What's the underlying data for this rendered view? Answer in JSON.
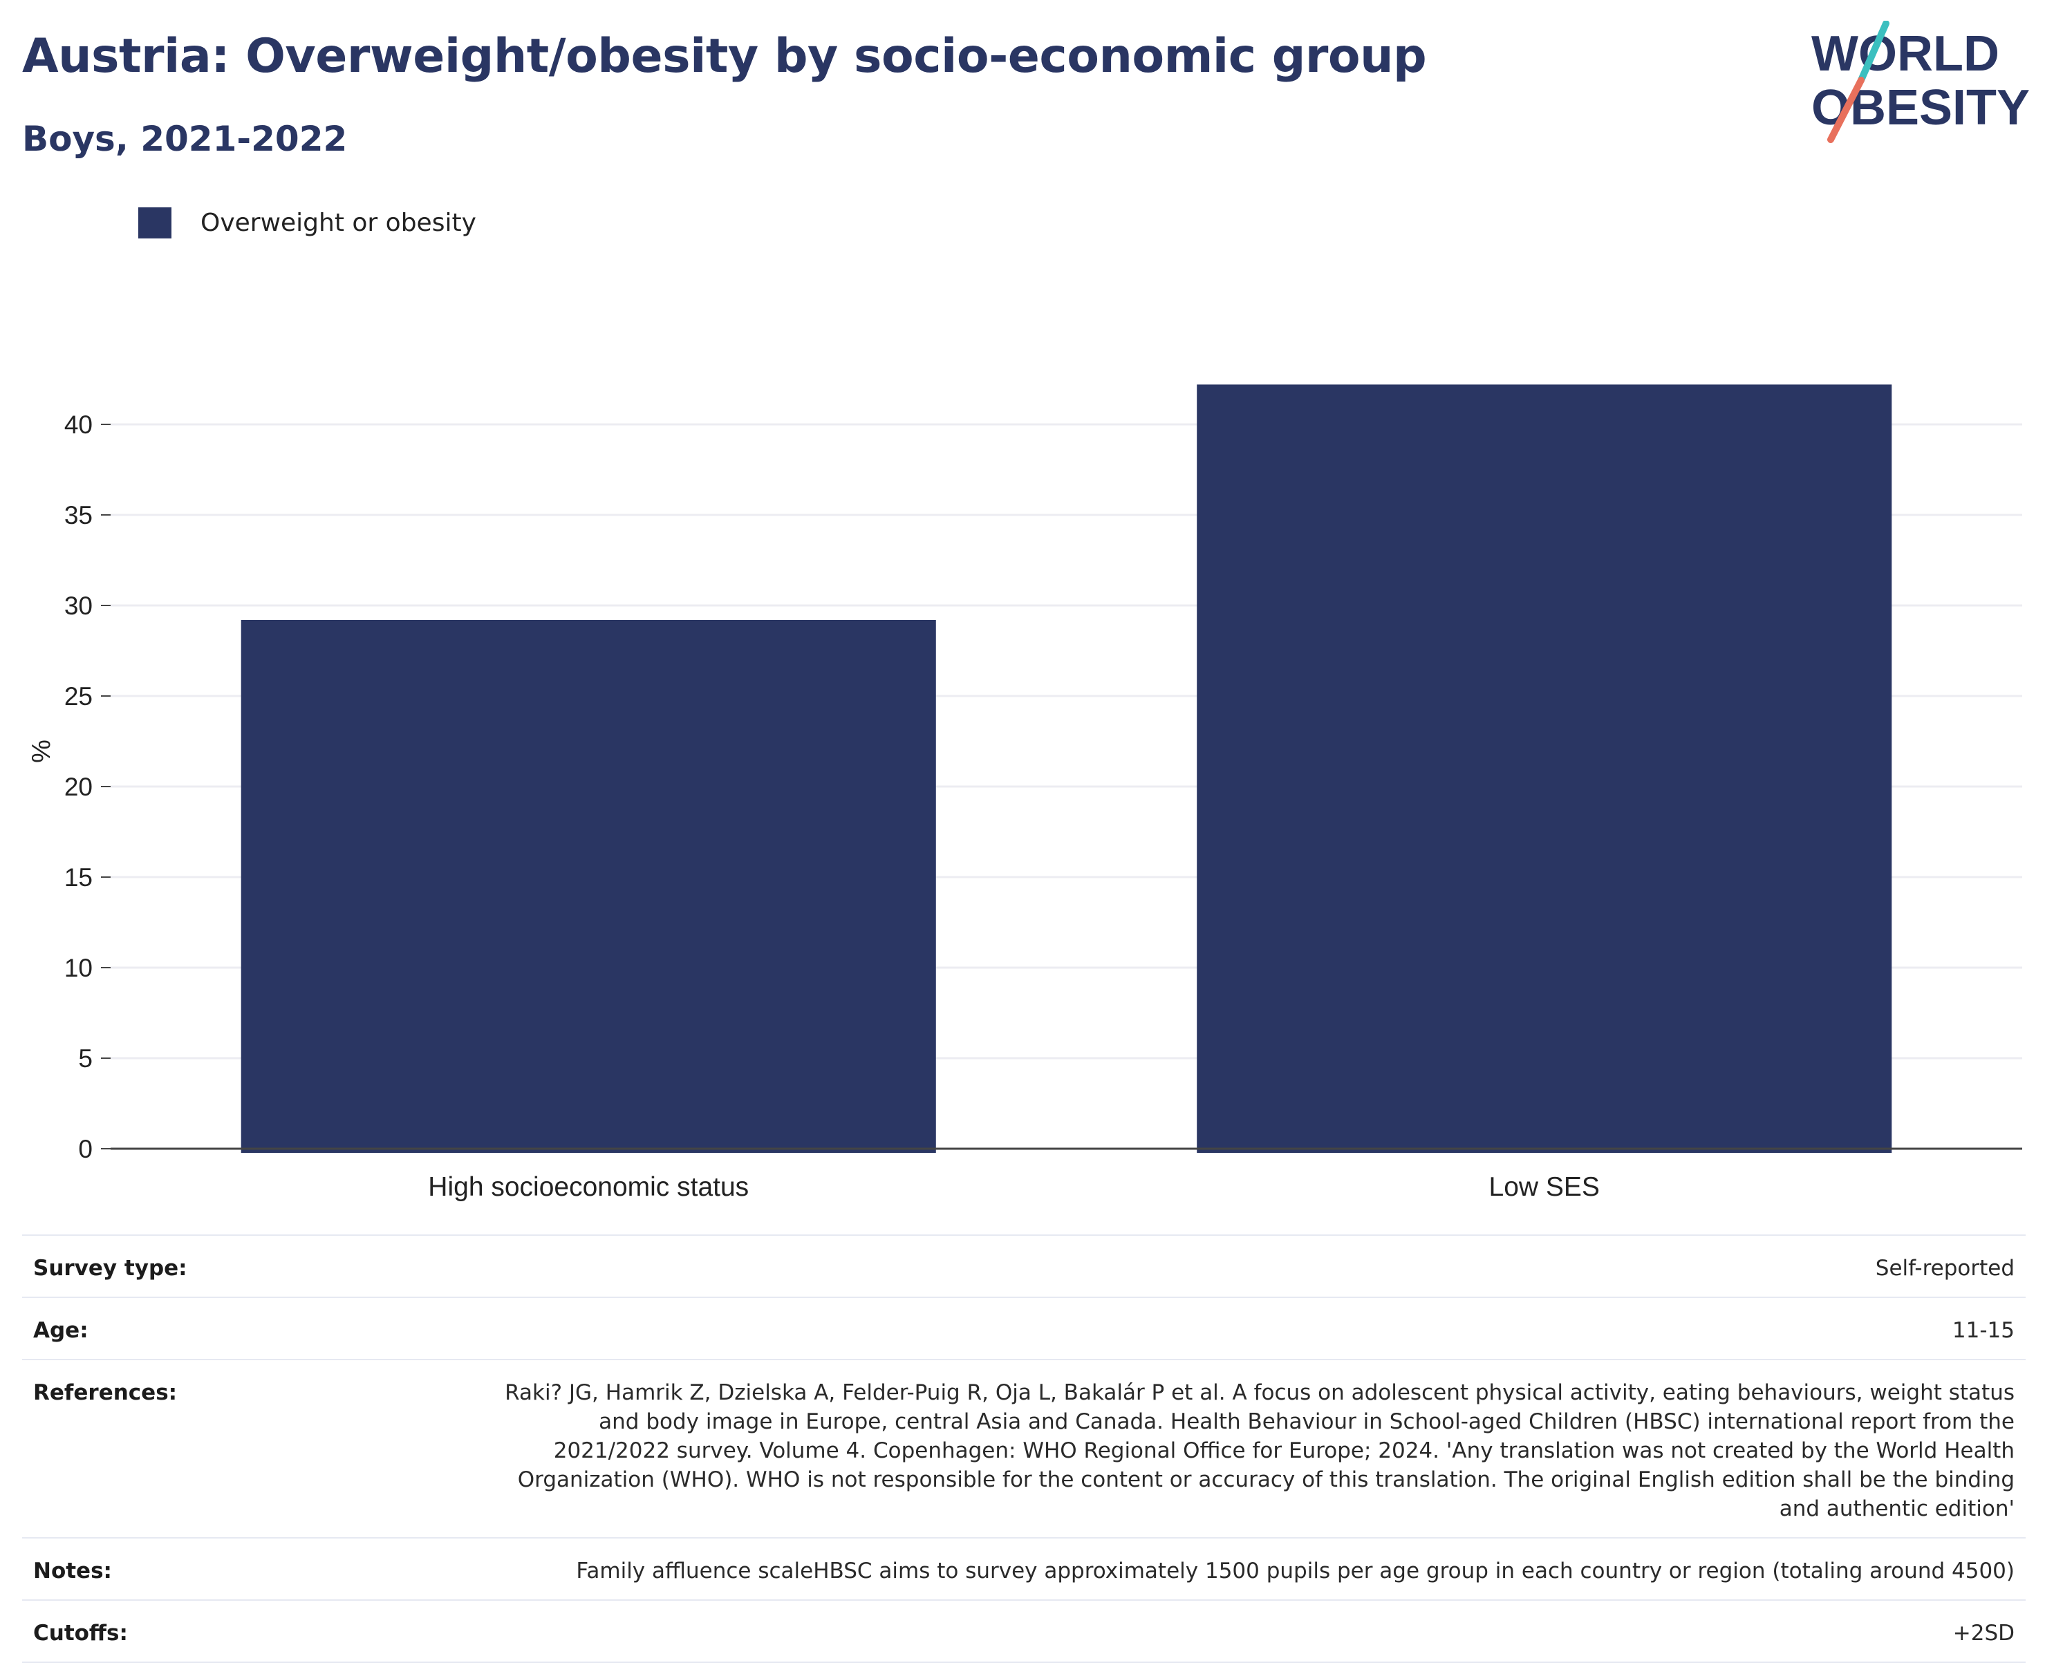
{
  "header": {
    "title": "Austria: Overweight/obesity by socio-economic group",
    "subtitle": "Boys, 2021-2022"
  },
  "logo": {
    "line1": "WORLD",
    "line2": "OBESITY"
  },
  "legend": {
    "label": "Overweight or obesity"
  },
  "colors": {
    "bar": "#2a3663",
    "title": "#2a3663",
    "gridline": "#ececf2",
    "logo_teal": "#3bbfbf",
    "logo_coral": "#e8705c"
  },
  "chart_data": {
    "type": "bar",
    "categories": [
      "High socioeconomic status",
      "Low SES"
    ],
    "series": [
      {
        "name": "Overweight or obesity",
        "values": [
          29.2,
          42.2
        ]
      }
    ],
    "ylabel": "%",
    "xlabel": "",
    "ylim": [
      0,
      44
    ],
    "yticks": [
      0,
      5,
      10,
      15,
      20,
      25,
      30,
      35,
      40
    ],
    "grid": true,
    "legend_position": "top-left"
  },
  "info": {
    "survey_type": {
      "label": "Survey type:",
      "value": "Self-reported"
    },
    "age": {
      "label": "Age:",
      "value": "11-15"
    },
    "references": {
      "label": "References:",
      "value": "Raki? JG, Hamrik Z, Dzielska A, Felder-Puig R, Oja L, Bakalár P et al. A focus on adolescent physical activity, eating behaviours, weight status and body image in Europe, central Asia and Canada. Health Behaviour in School-aged Children (HBSC) international report from the 2021/2022 survey. Volume 4. Copenhagen: WHO Regional Office for Europe; 2024. 'Any translation was not created by the World Health Organization (WHO). WHO is not responsible for the content or accuracy of this translation. The original English edition shall be the binding and authentic edition'"
    },
    "notes": {
      "label": "Notes:",
      "value": "Family affluence scaleHBSC aims to survey approximately 1500 pupils per age group in each country or region (totaling around 4500)"
    },
    "cutoffs": {
      "label": "Cutoffs:",
      "value": "+2SD"
    }
  }
}
